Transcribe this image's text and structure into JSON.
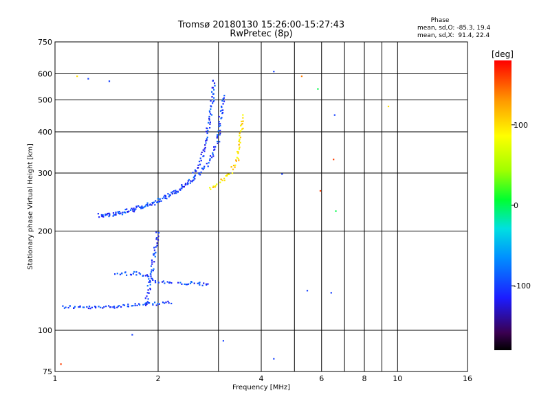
{
  "chart_data": {
    "type": "scatter",
    "title": "Tromsø 20180130 15:26:00-15:27:43",
    "subtitle": "RwPretec (8p)",
    "xlabel": "Frequency [MHz]",
    "ylabel": "Stationary phase Virtual Height [km]",
    "xscale": "log",
    "yscale": "log",
    "xlim": [
      1,
      16
    ],
    "ylim": [
      75,
      750
    ],
    "x_ticks": [
      1,
      2,
      4,
      6,
      8,
      10,
      16
    ],
    "x_grid": [
      1,
      2,
      3,
      4,
      5,
      6,
      7,
      8,
      9,
      10,
      16
    ],
    "y_ticks": [
      75,
      100,
      200,
      300,
      400,
      500,
      600,
      750
    ],
    "y_grid": [
      100,
      200,
      300,
      400,
      500,
      600
    ],
    "phase_stats": {
      "title": "Phase",
      "line_o": "mean, sd,O: -85.3, 19.4",
      "line_x": "mean, sd,X:  91.4, 22.4"
    },
    "colorbar": {
      "label": "[deg]",
      "range": [
        -180,
        180
      ],
      "ticks": [
        100,
        0,
        -100
      ]
    },
    "series": [
      {
        "name": "E-layer traces (O-mode)",
        "phase_deg": -100,
        "segments": [
          {
            "x": [
              1.05,
              1.3,
              1.6,
              1.9,
              2.05,
              2.2
            ],
            "y": [
              118,
              117,
              119,
              120,
              121,
              121
            ]
          },
          {
            "x": [
              1.5,
              1.7,
              1.85,
              2.0,
              2.2
            ],
            "y": [
              148,
              149,
              147,
              140,
              140
            ]
          },
          {
            "x": [
              2.3,
              2.5,
              2.7,
              2.85
            ],
            "y": [
              138,
              139,
              138,
              137
            ]
          },
          {
            "x": [
              1.85,
              1.9,
              1.95,
              2.0
            ],
            "y": [
              120,
              145,
              170,
              200
            ]
          }
        ]
      },
      {
        "name": "F-layer trace (O-mode)",
        "phase_deg": -100,
        "segments": [
          {
            "x": [
              1.35,
              1.5,
              1.7,
              1.9,
              2.1,
              2.3,
              2.5,
              2.65,
              2.75,
              2.82,
              2.86,
              2.9,
              2.92
            ],
            "y": [
              224,
              226,
              234,
              243,
              255,
              268,
              285,
              320,
              370,
              420,
              470,
              530,
              580
            ]
          },
          {
            "x": [
              1.35,
              1.6,
              1.9,
              2.2,
              2.5,
              2.8,
              3.0,
              3.05,
              3.1
            ],
            "y": [
              222,
              228,
              240,
              258,
              285,
              320,
              380,
              450,
              520
            ]
          }
        ]
      },
      {
        "name": "F-layer trace (X-mode)",
        "phase_deg": 100,
        "segments": [
          {
            "x": [
              2.85,
              3.05,
              3.25,
              3.4,
              3.48,
              3.52
            ],
            "y": [
              268,
              282,
              300,
              330,
              380,
              450
            ]
          }
        ]
      }
    ],
    "annotations": [
      {
        "x": 1.16,
        "y": 590,
        "phase_deg": 100
      },
      {
        "x": 1.25,
        "y": 580,
        "phase_deg": -100
      },
      {
        "x": 1.44,
        "y": 570,
        "phase_deg": -100
      },
      {
        "x": 4.35,
        "y": 610,
        "phase_deg": -100
      },
      {
        "x": 5.25,
        "y": 590,
        "phase_deg": 140
      },
      {
        "x": 5.85,
        "y": 540,
        "phase_deg": 0
      },
      {
        "x": 6.55,
        "y": 450,
        "phase_deg": -100
      },
      {
        "x": 9.4,
        "y": 478,
        "phase_deg": 100
      },
      {
        "x": 6.5,
        "y": 330,
        "phase_deg": 160
      },
      {
        "x": 5.95,
        "y": 265,
        "phase_deg": 160
      },
      {
        "x": 6.6,
        "y": 230,
        "phase_deg": 0
      },
      {
        "x": 4.6,
        "y": 298,
        "phase_deg": -100
      },
      {
        "x": 4.35,
        "y": 82,
        "phase_deg": -100
      },
      {
        "x": 1.04,
        "y": 79,
        "phase_deg": 160
      },
      {
        "x": 1.68,
        "y": 97,
        "phase_deg": -100
      },
      {
        "x": 3.1,
        "y": 93,
        "phase_deg": -100
      },
      {
        "x": 6.4,
        "y": 130,
        "phase_deg": -100
      },
      {
        "x": 5.45,
        "y": 132,
        "phase_deg": -100
      }
    ]
  }
}
